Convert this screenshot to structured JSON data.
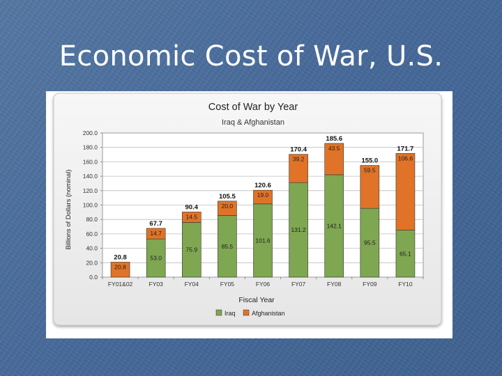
{
  "slide": {
    "title": "Economic Cost of War, U.S."
  },
  "chart_data": {
    "type": "bar",
    "stacked": true,
    "title": "Cost of War by Year",
    "subtitle": "Iraq & Afghanistan",
    "xlabel": "Fiscal Year",
    "ylabel": "Billions of Dollars (nominal)",
    "ylim": [
      0,
      200
    ],
    "yticks": [
      "0.0",
      "20.0",
      "40.0",
      "60.0",
      "80.0",
      "100.0",
      "120.0",
      "140.0",
      "160.0",
      "180.0",
      "200.0"
    ],
    "grid": true,
    "legend_position": "bottom",
    "categories": [
      "FY01&02",
      "FY03",
      "FY04",
      "FY05",
      "FY06",
      "FY07",
      "FY08",
      "FY09",
      "FY10"
    ],
    "series": [
      {
        "name": "Iraq",
        "color": "#7fa650",
        "values": [
          0,
          53.0,
          75.9,
          85.5,
          101.6,
          131.2,
          142.1,
          95.5,
          65.1
        ],
        "labels": [
          "",
          "53.0",
          "75.9",
          "85.5",
          "101.6",
          "131.2",
          "142.1",
          "95.5",
          "65.1"
        ]
      },
      {
        "name": "Afghanistan",
        "color": "#e07327",
        "values": [
          20.8,
          14.7,
          14.5,
          20.0,
          19.0,
          39.2,
          43.5,
          59.5,
          106.6
        ],
        "labels": [
          "20.8",
          "14.7",
          "14.5",
          "20.0",
          "19.0",
          "39.2",
          "43.5",
          "59.5",
          "106.6"
        ]
      }
    ],
    "totals": [
      "20.8",
      "67.7",
      "90.4",
      "105.5",
      "120.6",
      "170.4",
      "185.6",
      "155.0",
      "171.7"
    ]
  }
}
